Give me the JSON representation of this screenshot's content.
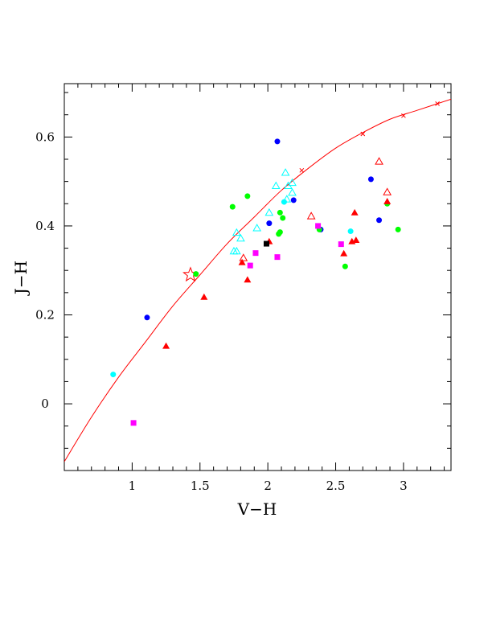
{
  "chart_data": {
    "type": "scatter",
    "title": "",
    "xlabel": "V−H",
    "ylabel": "J−H",
    "xlim": [
      0.5,
      3.35
    ],
    "ylim": [
      -0.15,
      0.72
    ],
    "x_ticks": [
      {
        "value": 1,
        "label": "1"
      },
      {
        "value": 1.5,
        "label": "1.5"
      },
      {
        "value": 2,
        "label": "2"
      },
      {
        "value": 2.5,
        "label": "2.5"
      },
      {
        "value": 3,
        "label": "3"
      }
    ],
    "y_ticks": [
      {
        "value": 0,
        "label": "0"
      },
      {
        "value": 0.2,
        "label": "0.2"
      },
      {
        "value": 0.4,
        "label": "0.4"
      },
      {
        "value": 0.6,
        "label": "0.6"
      }
    ],
    "grid": false,
    "curve": {
      "color": "#ff0000",
      "x": [
        0.5,
        0.7,
        0.9,
        1.1,
        1.3,
        1.5,
        1.7,
        1.9,
        2.1,
        2.3,
        2.5,
        2.7,
        2.9,
        3.1,
        3.35
      ],
      "y": [
        -0.13,
        -0.03,
        0.06,
        0.14,
        0.22,
        0.29,
        0.36,
        0.42,
        0.48,
        0.53,
        0.575,
        0.61,
        0.64,
        0.66,
        0.685
      ],
      "x_markers": [
        {
          "x": 2.25,
          "y": 0.525
        },
        {
          "x": 2.7,
          "y": 0.607
        },
        {
          "x": 3.0,
          "y": 0.648
        },
        {
          "x": 3.25,
          "y": 0.675
        }
      ]
    },
    "star": {
      "x": 1.43,
      "y": 0.29,
      "color": "#ff0000"
    },
    "series": [
      {
        "marker": "filled-circle",
        "color": "#0000ff",
        "points": [
          {
            "x": 2.07,
            "y": 0.59
          },
          {
            "x": 2.76,
            "y": 0.505
          },
          {
            "x": 2.19,
            "y": 0.458
          },
          {
            "x": 2.01,
            "y": 0.406
          },
          {
            "x": 2.82,
            "y": 0.413
          },
          {
            "x": 1.11,
            "y": 0.194
          },
          {
            "x": 2.39,
            "y": 0.392
          }
        ]
      },
      {
        "marker": "filled-circle",
        "color": "#00ffff",
        "points": [
          {
            "x": 0.86,
            "y": 0.066
          },
          {
            "x": 2.61,
            "y": 0.388
          },
          {
            "x": 2.12,
            "y": 0.454
          }
        ]
      },
      {
        "marker": "filled-circle",
        "color": "#00ff00",
        "points": [
          {
            "x": 1.85,
            "y": 0.467
          },
          {
            "x": 1.74,
            "y": 0.443
          },
          {
            "x": 2.09,
            "y": 0.43
          },
          {
            "x": 2.11,
            "y": 0.418
          },
          {
            "x": 2.08,
            "y": 0.382
          },
          {
            "x": 2.09,
            "y": 0.386
          },
          {
            "x": 2.38,
            "y": 0.392
          },
          {
            "x": 2.88,
            "y": 0.45
          },
          {
            "x": 2.96,
            "y": 0.392
          },
          {
            "x": 2.57,
            "y": 0.309
          },
          {
            "x": 1.47,
            "y": 0.292
          }
        ]
      },
      {
        "marker": "filled-triangle",
        "color": "#ff0000",
        "points": [
          {
            "x": 1.25,
            "y": 0.13
          },
          {
            "x": 1.53,
            "y": 0.24
          },
          {
            "x": 1.81,
            "y": 0.318
          },
          {
            "x": 1.85,
            "y": 0.279
          },
          {
            "x": 2.01,
            "y": 0.365
          },
          {
            "x": 2.56,
            "y": 0.338
          },
          {
            "x": 2.62,
            "y": 0.365
          },
          {
            "x": 2.65,
            "y": 0.368
          },
          {
            "x": 2.64,
            "y": 0.43
          },
          {
            "x": 2.88,
            "y": 0.455
          }
        ]
      },
      {
        "marker": "open-triangle",
        "color": "#ff0000",
        "points": [
          {
            "x": 2.82,
            "y": 0.545
          },
          {
            "x": 2.88,
            "y": 0.476
          },
          {
            "x": 2.32,
            "y": 0.422
          },
          {
            "x": 1.82,
            "y": 0.328
          }
        ]
      },
      {
        "marker": "open-triangle",
        "color": "#00ffff",
        "points": [
          {
            "x": 2.13,
            "y": 0.52
          },
          {
            "x": 2.18,
            "y": 0.497
          },
          {
            "x": 2.15,
            "y": 0.49
          },
          {
            "x": 2.06,
            "y": 0.49
          },
          {
            "x": 2.18,
            "y": 0.475
          },
          {
            "x": 2.14,
            "y": 0.46
          },
          {
            "x": 2.01,
            "y": 0.43
          },
          {
            "x": 1.92,
            "y": 0.395
          },
          {
            "x": 1.77,
            "y": 0.385
          },
          {
            "x": 1.8,
            "y": 0.372
          },
          {
            "x": 1.75,
            "y": 0.343
          },
          {
            "x": 1.77,
            "y": 0.343
          }
        ]
      },
      {
        "marker": "filled-square",
        "color": "#ff00ff",
        "points": [
          {
            "x": 1.01,
            "y": -0.043
          },
          {
            "x": 1.91,
            "y": 0.339
          },
          {
            "x": 1.87,
            "y": 0.311
          },
          {
            "x": 2.07,
            "y": 0.33
          },
          {
            "x": 2.37,
            "y": 0.4
          },
          {
            "x": 2.54,
            "y": 0.359
          }
        ]
      },
      {
        "marker": "filled-square",
        "color": "#000000",
        "points": [
          {
            "x": 1.99,
            "y": 0.36
          }
        ]
      }
    ]
  }
}
